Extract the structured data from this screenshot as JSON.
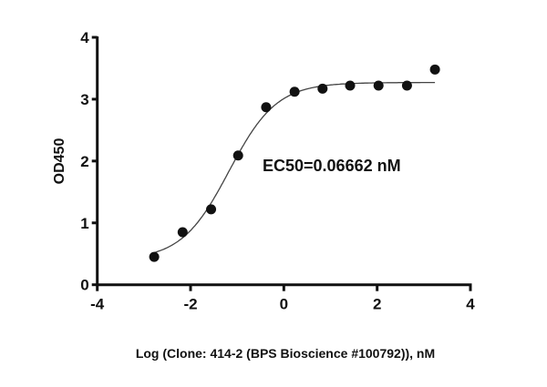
{
  "chart_data": {
    "type": "scatter",
    "xlabel": "Log (Clone: 414-2 (BPS Bioscience #100792)), nM",
    "ylabel": "OD450",
    "xlim": [
      -4,
      4
    ],
    "ylim": [
      0,
      4
    ],
    "xticks": [
      -4,
      -2,
      0,
      2,
      4
    ],
    "yticks": [
      0,
      1,
      2,
      3,
      4
    ],
    "grid": false,
    "annotation": "EC50=0.06662 nM",
    "ec50_nM": 0.06662,
    "fit": "sigmoidal dose-response curve",
    "points": [
      {
        "x": -2.78,
        "y": 0.45
      },
      {
        "x": -2.17,
        "y": 0.85
      },
      {
        "x": -1.56,
        "y": 1.22
      },
      {
        "x": -0.98,
        "y": 2.09
      },
      {
        "x": -0.38,
        "y": 2.87
      },
      {
        "x": 0.23,
        "y": 3.12
      },
      {
        "x": 0.83,
        "y": 3.17
      },
      {
        "x": 1.42,
        "y": 3.22
      },
      {
        "x": 2.03,
        "y": 3.22
      },
      {
        "x": 2.64,
        "y": 3.22
      },
      {
        "x": 3.24,
        "y": 3.48
      }
    ],
    "colors": {
      "marks": "#111111",
      "curve": "#444444"
    }
  }
}
